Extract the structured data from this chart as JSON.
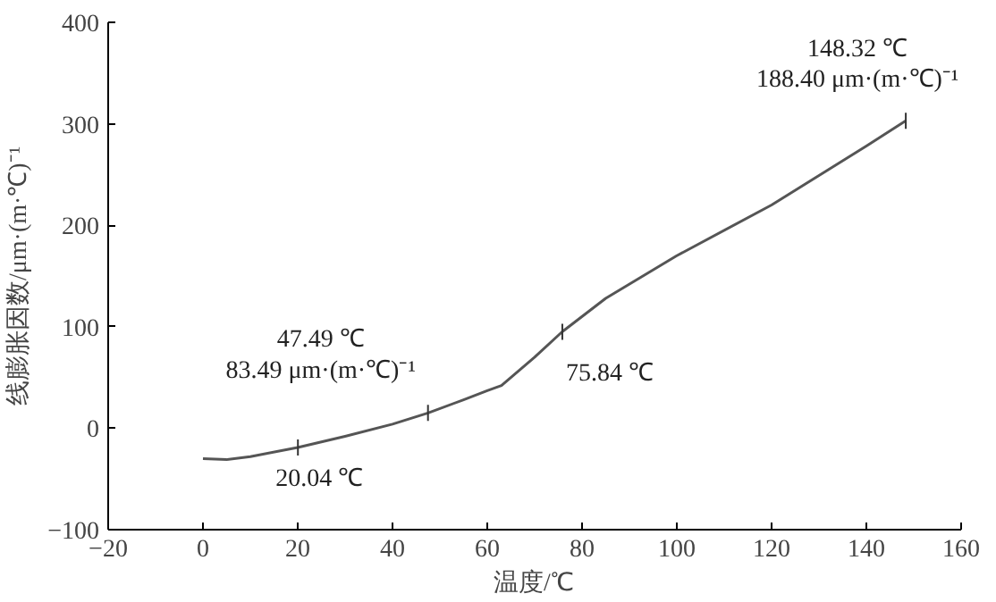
{
  "chart_data": {
    "type": "line",
    "xlabel": "温度/℃",
    "ylabel": "线膨胀因数/μm·(m·℃)⁻¹",
    "x": [
      0,
      5,
      10,
      20,
      30,
      40,
      47.5,
      55,
      60,
      63,
      70,
      75.8,
      85,
      100,
      120,
      140,
      148.3
    ],
    "series": [
      {
        "color": "#555555",
        "values": [
          -30,
          -31,
          -28,
          -19,
          -8,
          4,
          15,
          28,
          37,
          42,
          70,
          95,
          128,
          170,
          220,
          278,
          303
        ]
      }
    ],
    "xlim": [
      -20,
      160
    ],
    "xticks": [
      {
        "value": -20,
        "label": "−20"
      },
      0,
      20,
      40,
      60,
      80,
      100,
      120,
      140,
      160
    ],
    "ylim": [
      -100,
      400
    ],
    "yticks": [
      {
        "value": -100,
        "label": "−100"
      },
      0,
      100,
      200,
      300,
      400
    ],
    "grid": false,
    "marker": "none",
    "line_style": "solid",
    "annotations": [
      {
        "text": "20.04 ℃",
        "x": 20.04,
        "y": -19
      },
      {
        "text": "47.49 ℃\n83.49 μm·(m·℃)⁻¹",
        "x": 47.49,
        "y": 15
      },
      {
        "text": "75.84 ℃",
        "x": 75.84,
        "y": 95
      },
      {
        "text": "148.32 ℃\n188.40 μm·(m·℃)⁻¹",
        "x": 148.32,
        "y": 303
      }
    ]
  }
}
